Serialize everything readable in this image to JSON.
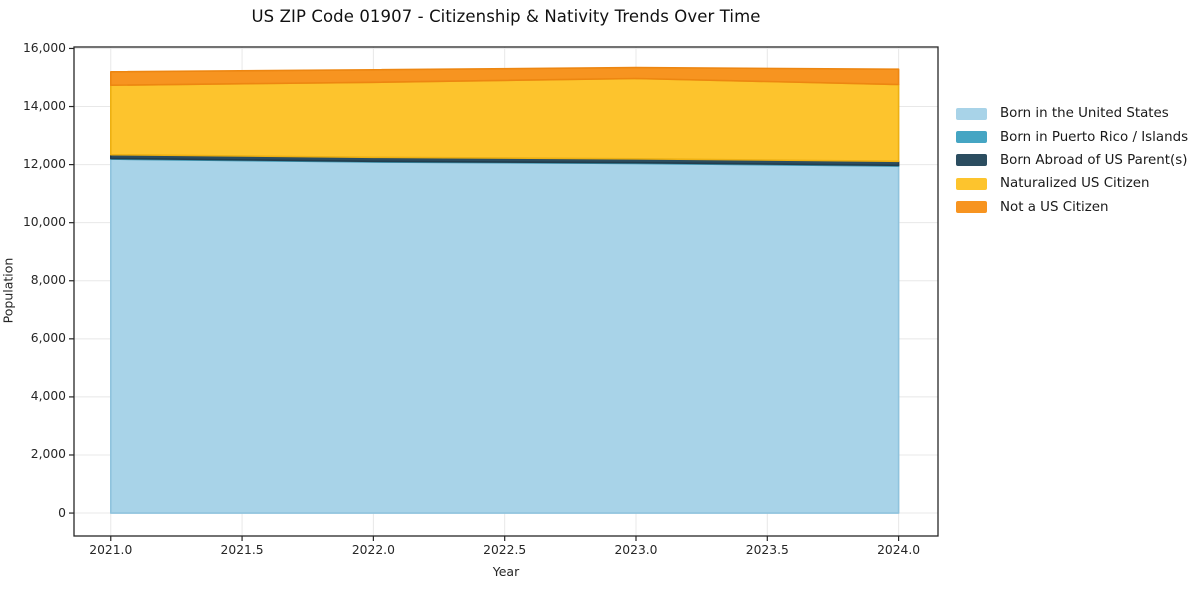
{
  "header": {
    "title": "US ZIP Code 01907 - Citizenship & Nativity Trends Over Time"
  },
  "chart_data": {
    "type": "area",
    "stacked": true,
    "title": "US ZIP Code 01907 - Citizenship & Nativity Trends Over Time",
    "xlabel": "Year",
    "ylabel": "Population",
    "x": [
      2021,
      2022,
      2023,
      2024
    ],
    "series": [
      {
        "name": "Born in the United States",
        "color": "#a8d3e8",
        "edge": "#8fc3dd",
        "values": [
          12190,
          12090,
          12040,
          11950
        ]
      },
      {
        "name": "Born in Puerto Rico / Islands",
        "color": "#45a5c3",
        "edge": "#3a92ad",
        "values": [
          25,
          25,
          25,
          25
        ]
      },
      {
        "name": "Born Abroad of US Parent(s)",
        "color": "#2b4d60",
        "edge": "#223d4d",
        "values": [
          125,
          135,
          135,
          140
        ]
      },
      {
        "name": "Naturalized US Citizen",
        "color": "#fdc42d",
        "edge": "#edb012",
        "values": [
          2395,
          2585,
          2765,
          2645
        ]
      },
      {
        "name": "Not a US Citizen",
        "color": "#f79420",
        "edge": "#ed8611",
        "values": [
          460,
          430,
          375,
          525
        ]
      }
    ],
    "totals": [
      15195,
      15265,
      15340,
      15285
    ],
    "xlim": [
      2020.86,
      2024.15
    ],
    "ylim": [
      -790,
      16050
    ],
    "xticks": {
      "values": [
        2021.0,
        2021.5,
        2022.0,
        2022.5,
        2023.0,
        2023.5,
        2024.0
      ],
      "labels": [
        "2021.0",
        "2021.5",
        "2022.0",
        "2022.5",
        "2023.0",
        "2023.5",
        "2024.0"
      ]
    },
    "yticks": {
      "values": [
        0,
        2000,
        4000,
        6000,
        8000,
        10000,
        12000,
        14000,
        16000
      ],
      "labels": [
        "0",
        "2,000",
        "4,000",
        "6,000",
        "8,000",
        "10,000",
        "12,000",
        "14,000",
        "16,000"
      ]
    },
    "grid": true,
    "grid_color": "#e8e8e8",
    "spine_color": "#262626",
    "legend_position": "right"
  }
}
